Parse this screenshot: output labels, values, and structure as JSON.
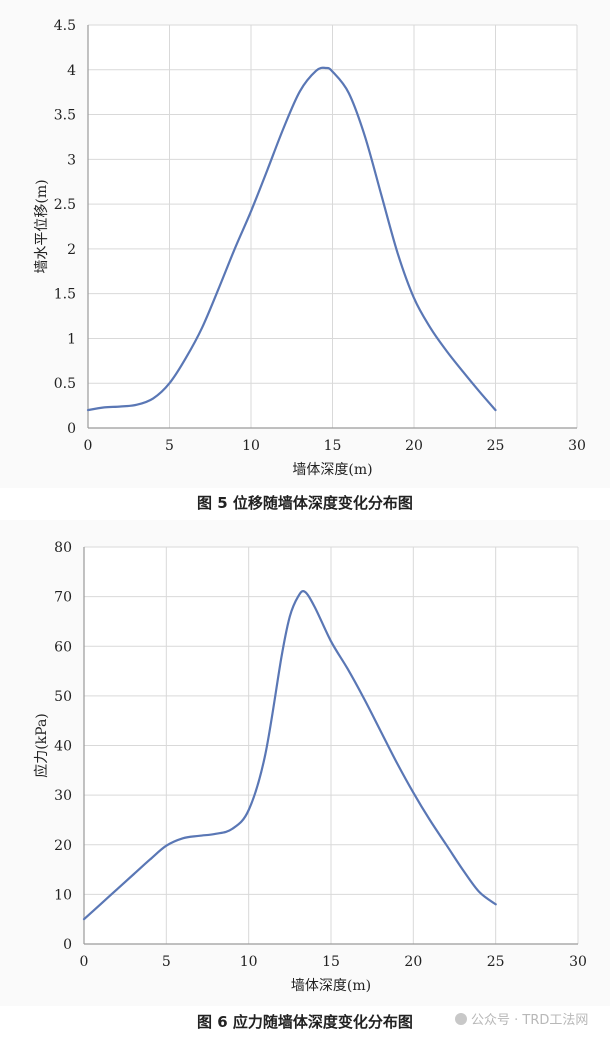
{
  "chart_data": [
    {
      "type": "line",
      "title": "",
      "caption": "图 5  位移随墙体深度变化分布图",
      "xlabel": "墙体深度(m)",
      "ylabel": "墙水平位移(m)",
      "xlim": [
        0,
        30
      ],
      "ylim": [
        0,
        4.5
      ],
      "x_ticks": [
        "0",
        "5",
        "10",
        "15",
        "20",
        "25",
        "30"
      ],
      "y_ticks": [
        "0",
        "0.5",
        "1",
        "1.5",
        "2",
        "2.5",
        "3",
        "3.5",
        "4",
        "4.5"
      ],
      "grid": true,
      "line_color": "#5a77b5",
      "series": [
        {
          "x": [
            0,
            1,
            2,
            3,
            4,
            5,
            6,
            7,
            8,
            9,
            10,
            11,
            12,
            13,
            14,
            14.6,
            15,
            16,
            17,
            18,
            19,
            20,
            21,
            22,
            23,
            24,
            25
          ],
          "values": [
            0.2,
            0.23,
            0.24,
            0.26,
            0.33,
            0.5,
            0.78,
            1.12,
            1.55,
            2.0,
            2.42,
            2.88,
            3.35,
            3.76,
            3.99,
            4.02,
            3.98,
            3.74,
            3.25,
            2.6,
            1.95,
            1.45,
            1.12,
            0.86,
            0.63,
            0.41,
            0.2
          ]
        }
      ]
    },
    {
      "type": "line",
      "title": "",
      "caption": "图 6  应力随墙体深度变化分布图",
      "xlabel": "墙体深度(m)",
      "ylabel": "应力(kPa)",
      "xlim": [
        0,
        30
      ],
      "ylim": [
        0,
        80
      ],
      "x_ticks": [
        "0",
        "5",
        "10",
        "15",
        "20",
        "25",
        "30"
      ],
      "y_ticks": [
        "0",
        "10",
        "20",
        "30",
        "40",
        "50",
        "60",
        "70",
        "80"
      ],
      "grid": true,
      "line_color": "#5a77b5",
      "series": [
        {
          "x": [
            0,
            1,
            2,
            3,
            4,
            5,
            6,
            7,
            8,
            9,
            10,
            11,
            12,
            12.5,
            13,
            13.4,
            14,
            15,
            16,
            17,
            18,
            19,
            20,
            21,
            22,
            23,
            24,
            25
          ],
          "values": [
            5,
            8,
            11,
            14,
            17,
            19.8,
            21.3,
            21.8,
            22.2,
            23.2,
            27,
            38,
            58,
            66,
            70,
            71,
            68,
            61,
            55.5,
            49.5,
            43,
            36.5,
            30.5,
            25,
            20,
            15,
            10.5,
            8
          ]
        }
      ]
    }
  ],
  "watermark": "公众号 · TRD工法网"
}
